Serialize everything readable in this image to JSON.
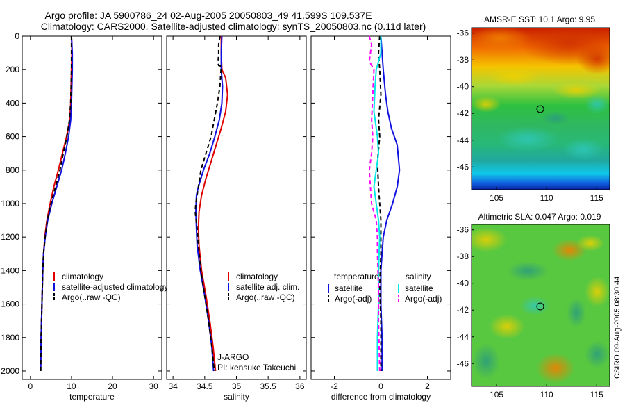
{
  "title": {
    "line1": "Argo profile: JA 5900786_24 02-Aug-2005 20050803_49 41.599S 109.537E",
    "line2": "Climatology: CARS2000. Satellite-adjusted climatology: synTS_20050803.nc (0.11d later)"
  },
  "credit": "CSIRO 09-Aug-2005 08:30:44",
  "colors": {
    "climatology": "#e00000",
    "satellite": "#1010e0",
    "argo": "#000000",
    "sat_salinity": "#00e8e8",
    "argo_salinity": "#ff00ff"
  },
  "chart_data": [
    {
      "type": "line",
      "name": "temperature-profile",
      "xlabel": "temperature",
      "xlim": [
        -2,
        32
      ],
      "ylim": [
        0,
        2050
      ],
      "y_reversed": true,
      "xticks": [
        "0",
        "10",
        "20",
        "30"
      ],
      "yticks": [
        "0",
        "200",
        "400",
        "600",
        "800",
        "1000",
        "1200",
        "1400",
        "1600",
        "1800",
        "2000"
      ],
      "legend": [
        "climatology",
        "satellite-adjusted climatology",
        "Argo(..raw -QC)"
      ],
      "series": [
        {
          "name": "climatology",
          "color": "#e00000",
          "dash": "",
          "points": [
            [
              10.0,
              0
            ],
            [
              10.1,
              50
            ],
            [
              10.1,
              100
            ],
            [
              10.0,
              200
            ],
            [
              9.9,
              300
            ],
            [
              9.8,
              400
            ],
            [
              9.6,
              500
            ],
            [
              8.8,
              600
            ],
            [
              7.8,
              700
            ],
            [
              6.8,
              800
            ],
            [
              5.7,
              900
            ],
            [
              4.8,
              1000
            ],
            [
              4.0,
              1100
            ],
            [
              3.5,
              1200
            ],
            [
              3.2,
              1300
            ],
            [
              3.0,
              1400
            ],
            [
              2.9,
              1500
            ],
            [
              2.8,
              1600
            ],
            [
              2.6,
              1800
            ],
            [
              2.5,
              2000
            ]
          ]
        },
        {
          "name": "satellite-adjusted climatology",
          "color": "#1010e0",
          "dash": "",
          "points": [
            [
              10.0,
              0
            ],
            [
              10.1,
              50
            ],
            [
              10.2,
              100
            ],
            [
              10.2,
              200
            ],
            [
              10.1,
              300
            ],
            [
              10.0,
              400
            ],
            [
              9.8,
              500
            ],
            [
              9.3,
              600
            ],
            [
              8.5,
              700
            ],
            [
              7.6,
              800
            ],
            [
              6.4,
              900
            ],
            [
              5.2,
              1000
            ],
            [
              4.2,
              1100
            ],
            [
              3.6,
              1200
            ],
            [
              3.2,
              1300
            ],
            [
              3.0,
              1400
            ],
            [
              2.9,
              1500
            ],
            [
              2.8,
              1600
            ],
            [
              2.6,
              1800
            ],
            [
              2.5,
              2000
            ]
          ]
        },
        {
          "name": "Argo(..raw -QC)",
          "color": "#000000",
          "dash": "6,4",
          "points": [
            [
              10.0,
              0
            ],
            [
              10.0,
              100
            ],
            [
              10.0,
              200
            ],
            [
              9.9,
              300
            ],
            [
              9.8,
              400
            ],
            [
              9.5,
              500
            ],
            [
              8.9,
              600
            ],
            [
              8.0,
              700
            ],
            [
              7.2,
              800
            ],
            [
              6.1,
              900
            ],
            [
              5.0,
              1000
            ],
            [
              4.1,
              1100
            ],
            [
              3.6,
              1200
            ],
            [
              3.2,
              1300
            ],
            [
              3.0,
              1400
            ],
            [
              2.9,
              1500
            ],
            [
              2.8,
              1600
            ],
            [
              2.6,
              1800
            ],
            [
              2.5,
              2000
            ]
          ]
        }
      ]
    },
    {
      "type": "line",
      "name": "salinity-profile",
      "xlabel": "salinity",
      "xlim": [
        33.9,
        36.1
      ],
      "ylim": [
        0,
        2050
      ],
      "y_reversed": true,
      "xticks": [
        "34",
        "34.5",
        "35",
        "35.5",
        "36"
      ],
      "legend": [
        "climatology",
        "satellite adj. clim.",
        "Argo(..raw -QC)"
      ],
      "annotation": [
        "J-ARGO",
        "PI: kensuke Takeuchi"
      ],
      "series": [
        {
          "name": "climatology",
          "color": "#e00000",
          "dash": "",
          "points": [
            [
              34.76,
              0
            ],
            [
              34.76,
              100
            ],
            [
              34.77,
              200
            ],
            [
              34.83,
              250
            ],
            [
              34.86,
              350
            ],
            [
              34.83,
              450
            ],
            [
              34.76,
              550
            ],
            [
              34.68,
              650
            ],
            [
              34.6,
              750
            ],
            [
              34.52,
              850
            ],
            [
              34.45,
              950
            ],
            [
              34.41,
              1050
            ],
            [
              34.4,
              1150
            ],
            [
              34.41,
              1250
            ],
            [
              34.45,
              1400
            ],
            [
              34.52,
              1550
            ],
            [
              34.58,
              1700
            ],
            [
              34.63,
              1850
            ],
            [
              34.67,
              2000
            ]
          ]
        },
        {
          "name": "satellite adj. clim.",
          "color": "#1010e0",
          "dash": "",
          "points": [
            [
              34.77,
              0
            ],
            [
              34.76,
              100
            ],
            [
              34.76,
              200
            ],
            [
              34.78,
              300
            ],
            [
              34.77,
              400
            ],
            [
              34.73,
              500
            ],
            [
              34.66,
              600
            ],
            [
              34.58,
              700
            ],
            [
              34.48,
              800
            ],
            [
              34.4,
              900
            ],
            [
              34.37,
              950
            ],
            [
              34.36,
              1050
            ],
            [
              34.37,
              1150
            ],
            [
              34.38,
              1250
            ],
            [
              34.43,
              1400
            ],
            [
              34.5,
              1550
            ],
            [
              34.56,
              1700
            ],
            [
              34.61,
              1850
            ],
            [
              34.64,
              2000
            ]
          ]
        },
        {
          "name": "Argo(..raw -QC)",
          "color": "#000000",
          "dash": "6,4",
          "points": [
            [
              34.74,
              0
            ],
            [
              34.72,
              50
            ],
            [
              34.72,
              100
            ],
            [
              34.71,
              160
            ],
            [
              34.72,
              175
            ],
            [
              34.76,
              180
            ],
            [
              34.74,
              300
            ],
            [
              34.7,
              400
            ],
            [
              34.65,
              500
            ],
            [
              34.6,
              600
            ],
            [
              34.52,
              700
            ],
            [
              34.44,
              800
            ],
            [
              34.4,
              900
            ],
            [
              34.36,
              1000
            ],
            [
              34.35,
              1050
            ],
            [
              34.38,
              1150
            ],
            [
              34.4,
              1250
            ],
            [
              34.44,
              1400
            ],
            [
              34.5,
              1550
            ],
            [
              34.56,
              1700
            ],
            [
              34.61,
              1850
            ],
            [
              34.65,
              2000
            ]
          ]
        }
      ]
    },
    {
      "type": "line",
      "name": "difference-profile",
      "xlabel": "difference from climatology",
      "xlim": [
        -3,
        3
      ],
      "ylim": [
        0,
        2050
      ],
      "y_reversed": true,
      "xticks": [
        "-2",
        "0",
        "2"
      ],
      "legend": {
        "left_header": "temperature",
        "left": [
          "satellite",
          "Argo(-adj)"
        ],
        "right_header": "salinity",
        "right": [
          "satellite",
          "Argo(-adj)"
        ]
      },
      "series": [
        {
          "name": "temperature satellite",
          "color": "#1010e0",
          "dash": "",
          "points": [
            [
              0.0,
              0
            ],
            [
              0.05,
              100
            ],
            [
              0.1,
              200
            ],
            [
              0.2,
              350
            ],
            [
              0.3,
              450
            ],
            [
              0.45,
              550
            ],
            [
              0.7,
              650
            ],
            [
              0.8,
              800
            ],
            [
              0.7,
              900
            ],
            [
              0.5,
              1000
            ],
            [
              0.25,
              1100
            ],
            [
              0.1,
              1200
            ],
            [
              0.05,
              1300
            ],
            [
              0.0,
              1400
            ],
            [
              0.0,
              1600
            ],
            [
              0.05,
              1800
            ],
            [
              0.05,
              2000
            ]
          ]
        },
        {
          "name": "temperature Argo(-adj)",
          "color": "#000000",
          "dash": "6,4",
          "points": [
            [
              -0.05,
              0
            ],
            [
              -0.1,
              100
            ],
            [
              -0.05,
              200
            ],
            [
              0.0,
              350
            ],
            [
              -0.1,
              500
            ],
            [
              -0.05,
              600
            ],
            [
              -0.15,
              750
            ],
            [
              -0.1,
              900
            ],
            [
              -0.05,
              1000
            ],
            [
              0.0,
              1100
            ],
            [
              0.0,
              1300
            ],
            [
              -0.05,
              1500
            ],
            [
              0.0,
              1700
            ],
            [
              0.0,
              2000
            ]
          ]
        },
        {
          "name": "salinity satellite",
          "color": "#00e8e8",
          "dash": "",
          "points": [
            [
              0.0,
              0
            ],
            [
              0.0,
              100
            ],
            [
              -0.2,
              200
            ],
            [
              -0.25,
              300
            ],
            [
              -0.3,
              450
            ],
            [
              -0.15,
              600
            ],
            [
              -0.1,
              700
            ],
            [
              -0.2,
              800
            ],
            [
              -0.3,
              900
            ],
            [
              -0.2,
              1000
            ],
            [
              -0.1,
              1100
            ],
            [
              -0.05,
              1200
            ],
            [
              -0.1,
              1400
            ],
            [
              -0.1,
              1600
            ],
            [
              -0.15,
              1800
            ],
            [
              -0.15,
              2000
            ]
          ]
        },
        {
          "name": "salinity Argo(-adj)",
          "color": "#ff00ff",
          "dash": "6,4",
          "points": [
            [
              -0.5,
              0
            ],
            [
              -0.4,
              50
            ],
            [
              -0.5,
              150
            ],
            [
              -0.3,
              200
            ],
            [
              -0.35,
              350
            ],
            [
              -0.4,
              500
            ],
            [
              -0.35,
              600
            ],
            [
              -0.4,
              700
            ],
            [
              -0.5,
              800
            ],
            [
              -0.45,
              900
            ],
            [
              -0.4,
              1000
            ],
            [
              -0.2,
              1100
            ],
            [
              -0.15,
              1200
            ],
            [
              -0.15,
              1300
            ],
            [
              -0.1,
              1500
            ],
            [
              -0.1,
              1700
            ],
            [
              -0.05,
              2000
            ]
          ]
        }
      ]
    },
    {
      "type": "heatmap",
      "name": "sst-map",
      "title": "AMSR-E SST: 10.1 Argo: 9.95",
      "xlim": [
        102.5,
        116.3
      ],
      "ylim": [
        -47.7,
        -35.6
      ],
      "xticks": [
        "105",
        "110",
        "115"
      ],
      "yticks": [
        "-36",
        "-38",
        "-40",
        "-42",
        "-44",
        "-46"
      ],
      "marker": [
        109.537,
        -41.599
      ]
    },
    {
      "type": "heatmap",
      "name": "sla-map",
      "title": "Altimetric SLA: 0.047 Argo: 0.019",
      "xlim": [
        102.5,
        116.3
      ],
      "ylim": [
        -47.7,
        -35.6
      ],
      "xticks": [
        "105",
        "110",
        "115"
      ],
      "yticks": [
        "-36",
        "-38",
        "-40",
        "-42",
        "-44",
        "-46"
      ],
      "marker": [
        109.537,
        -41.599
      ]
    }
  ]
}
